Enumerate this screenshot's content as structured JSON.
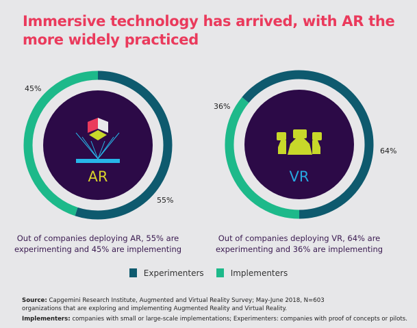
{
  "title": "Immersive technology has arrived, with AR the more widely practiced",
  "colors": {
    "experimenters": "#0e5a6e",
    "implementers": "#1db98a",
    "circle": "#2c0a47",
    "title": "#ea3a5c"
  },
  "chart_data": [
    {
      "type": "pie",
      "label": "AR",
      "series": [
        {
          "name": "Experimenters",
          "value": 55
        },
        {
          "name": "Implementers",
          "value": 45
        }
      ],
      "data_labels": [
        "55%",
        "45%"
      ],
      "caption": "Out of companies deploying AR, 55% are experimenting and 45% are implementing"
    },
    {
      "type": "pie",
      "label": "VR",
      "series": [
        {
          "name": "Experimenters",
          "value": 64
        },
        {
          "name": "Implementers",
          "value": 36
        }
      ],
      "data_labels": [
        "64%",
        "36%"
      ],
      "caption": "Out of companies deploying VR, 64% are experimenting and 36% are implementing"
    }
  ],
  "legend": [
    "Experimenters",
    "Implementers"
  ],
  "footer": {
    "source_label": "Source:",
    "source": "Capgemini Research Institute, Augmented and Virtual Reality Survey; May-June 2018, N=603 organizations that are exploring and implementing Augmented Reality and Virtual Reality.",
    "def_label": "Implementers:",
    "def": "companies with small or large-scale implementations; Experimenters: companies with proof of concepts or pilots."
  }
}
